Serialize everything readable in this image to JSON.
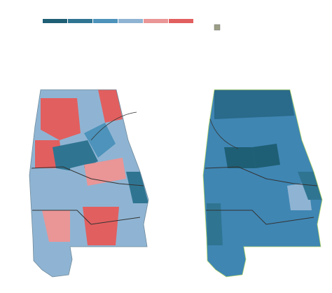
{
  "legend": {
    "colors": [
      "#1f5f75",
      "#2f7592",
      "#4d93bb",
      "#8fb4d3",
      "#ea9596",
      "#e25f5f"
    ],
    "swatch_color": "#9c9f86"
  }
}
